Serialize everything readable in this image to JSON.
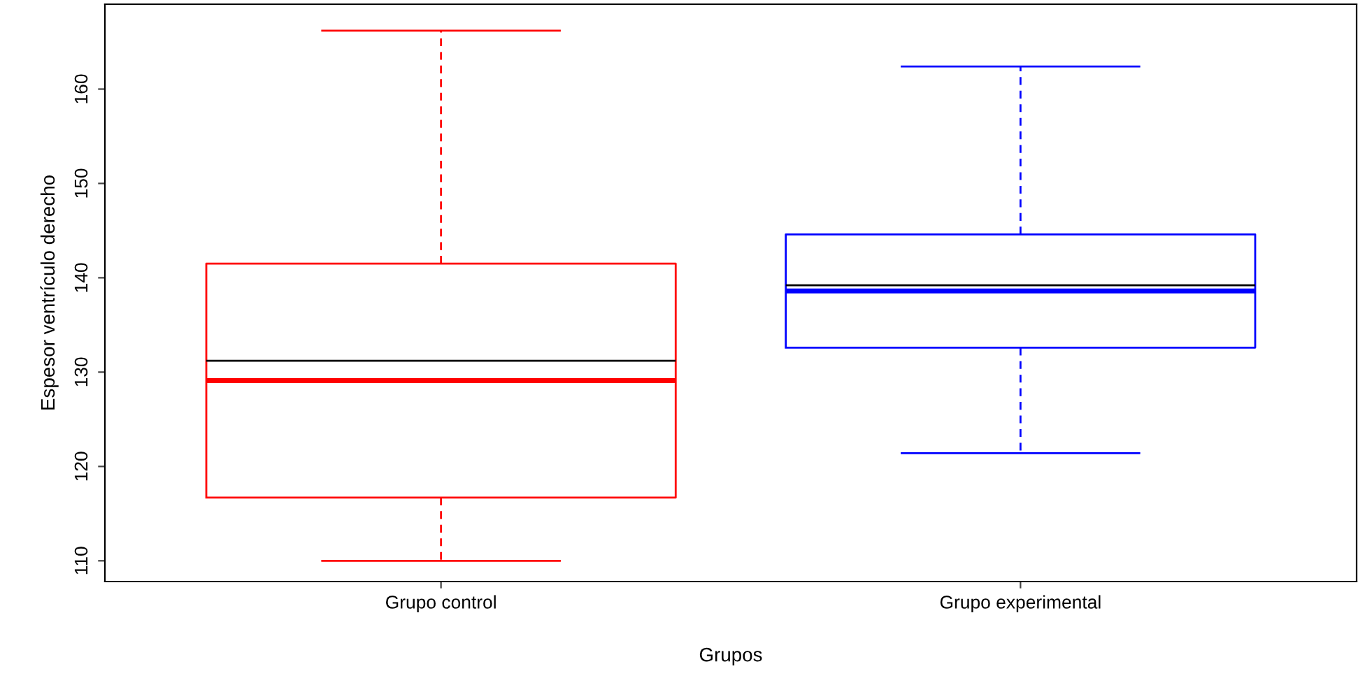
{
  "chart_data": {
    "type": "box",
    "xlabel": "Grupos",
    "ylabel": "Espesor ventrículo derecho",
    "categories": [
      "Grupo control",
      "Grupo experimental"
    ],
    "colors": [
      "#ff0000",
      "#0000ff"
    ],
    "boxes": [
      {
        "low": 110.0,
        "q1": 116.7,
        "median": 129.1,
        "q3": 141.5,
        "high": 166.2,
        "mean": 131.2
      },
      {
        "low": 121.4,
        "q1": 132.6,
        "median": 138.6,
        "q3": 144.6,
        "high": 162.4,
        "mean": 139.2
      }
    ],
    "ylim": [
      107.8,
      169.0
    ],
    "yticks": [
      110,
      120,
      130,
      140,
      150,
      160
    ],
    "grid": false
  }
}
